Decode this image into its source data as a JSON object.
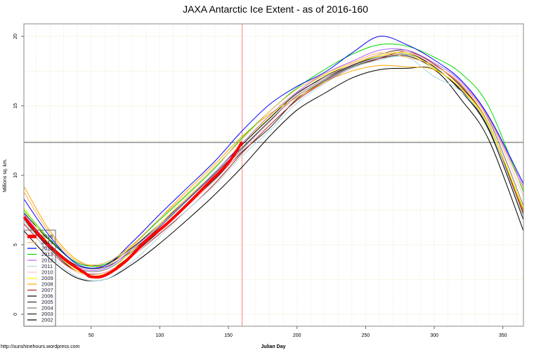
{
  "chart_data": {
    "type": "line",
    "title": "JAXA Antarctic Ice Extent - as of 2016-160",
    "xlabel": "Julian Day",
    "ylabel": "Millions sq. km.",
    "credit": "http://sunshinehours.wordpress.com",
    "xlim": [
      1,
      365
    ],
    "ylim": [
      -0.86,
      20.9
    ],
    "xticks": [
      50,
      100,
      150,
      200,
      250,
      300,
      350
    ],
    "yticks": [
      0,
      5,
      10,
      15,
      20
    ],
    "grid": true,
    "legend_position": "bottom-left",
    "reference_lines": {
      "vertical_day": 160,
      "horizontal_value": 12.37,
      "vertical_color": "#ff8080",
      "horizontal_color": "#555555"
    },
    "x": [
      1,
      20,
      40,
      60,
      80,
      100,
      120,
      140,
      160,
      180,
      200,
      220,
      240,
      260,
      280,
      300,
      320,
      340,
      365
    ],
    "series": [
      {
        "name": "2016",
        "color": "#ff0000",
        "x": [
          1,
          15,
          30,
          45,
          50,
          60,
          75,
          90,
          105,
          120,
          135,
          150,
          160
        ],
        "values": [
          7.0,
          5.4,
          4.0,
          3.0,
          2.7,
          2.8,
          3.8,
          5.3,
          6.5,
          7.9,
          9.4,
          10.9,
          12.4
        ]
      },
      {
        "name": "2015",
        "color": "#ffb25a",
        "values": [
          8.8,
          5.8,
          3.8,
          3.7,
          5.0,
          6.9,
          8.7,
          10.6,
          12.6,
          14.6,
          16.2,
          17.3,
          18.1,
          18.8,
          18.5,
          17.9,
          16.5,
          14.0,
          9.0
        ]
      },
      {
        "name": "2014",
        "color": "#0000ff",
        "values": [
          8.3,
          5.6,
          3.6,
          3.5,
          5.2,
          7.2,
          9.1,
          11.0,
          13.2,
          15.1,
          16.4,
          17.4,
          18.8,
          20.0,
          19.4,
          18.3,
          16.8,
          14.2,
          9.4
        ]
      },
      {
        "name": "2013",
        "color": "#00dd00",
        "values": [
          7.5,
          5.4,
          3.7,
          3.6,
          5.0,
          6.8,
          8.6,
          10.5,
          12.7,
          14.6,
          16.3,
          17.6,
          18.7,
          19.4,
          19.3,
          18.5,
          17.3,
          14.9,
          8.8
        ]
      },
      {
        "name": "2012",
        "color": "#b266ff",
        "values": [
          7.2,
          5.0,
          3.4,
          3.3,
          4.7,
          6.4,
          8.3,
          10.2,
          12.3,
          14.3,
          16.0,
          17.3,
          18.2,
          19.0,
          19.0,
          18.1,
          16.7,
          14.1,
          9.2
        ]
      },
      {
        "name": "2011",
        "color": "#add8e6",
        "values": [
          6.8,
          4.3,
          2.7,
          2.5,
          3.8,
          5.6,
          7.5,
          9.3,
          11.4,
          13.2,
          15.2,
          16.6,
          17.7,
          18.3,
          18.5,
          17.1,
          16.0,
          13.4,
          7.0
        ]
      },
      {
        "name": "2010",
        "color": "#ffc0cb",
        "values": [
          6.6,
          4.5,
          3.0,
          3.0,
          4.2,
          5.9,
          7.8,
          9.6,
          11.8,
          13.8,
          15.8,
          17.0,
          18.0,
          18.7,
          18.9,
          17.9,
          16.6,
          14.0,
          8.5
        ]
      },
      {
        "name": "2009",
        "color": "#ffff00",
        "values": [
          7.7,
          5.0,
          3.1,
          2.9,
          4.6,
          6.5,
          8.4,
          10.2,
          12.3,
          14.2,
          16.0,
          17.2,
          18.0,
          18.6,
          18.8,
          17.7,
          16.2,
          13.5,
          7.6
        ]
      },
      {
        "name": "2008",
        "color": "#ffa500",
        "values": [
          9.2,
          6.0,
          3.9,
          3.5,
          4.9,
          6.9,
          8.9,
          10.8,
          12.8,
          14.4,
          15.6,
          16.7,
          17.5,
          17.9,
          17.8,
          17.6,
          16.2,
          13.6,
          7.4
        ]
      },
      {
        "name": "2007",
        "color": "#b22222",
        "values": [
          6.5,
          4.5,
          3.1,
          3.0,
          4.2,
          5.8,
          7.5,
          9.4,
          11.6,
          13.6,
          15.4,
          16.7,
          17.7,
          18.4,
          18.9,
          18.0,
          16.3,
          13.6,
          7.2
        ]
      },
      {
        "name": "2006",
        "color": "#000000",
        "values": [
          7.3,
          5.3,
          3.7,
          3.6,
          4.8,
          6.5,
          8.3,
          10.2,
          12.2,
          14.1,
          15.9,
          17.0,
          17.9,
          18.6,
          18.8,
          17.8,
          16.0,
          13.2,
          6.8
        ]
      },
      {
        "name": "2005",
        "color": "#333333",
        "values": [
          7.0,
          5.0,
          3.5,
          3.4,
          4.6,
          6.3,
          8.2,
          10.1,
          12.0,
          13.9,
          15.8,
          17.1,
          18.0,
          18.7,
          19.0,
          18.0,
          16.4,
          13.6,
          7.5
        ]
      },
      {
        "name": "2004",
        "color": "#777777",
        "values": [
          6.9,
          4.9,
          3.3,
          3.2,
          4.5,
          6.1,
          8.0,
          9.9,
          11.9,
          13.9,
          15.7,
          16.9,
          17.9,
          18.5,
          18.7,
          17.9,
          16.5,
          13.9,
          7.8
        ]
      },
      {
        "name": "2003",
        "color": "#222222",
        "values": [
          6.8,
          4.7,
          3.1,
          3.0,
          4.3,
          6.0,
          7.9,
          9.7,
          11.7,
          13.4,
          15.5,
          16.8,
          17.8,
          18.4,
          18.6,
          17.7,
          16.1,
          13.3,
          7.3
        ]
      },
      {
        "name": "2002",
        "color": "#000000",
        "values": [
          6.0,
          4.0,
          2.6,
          2.5,
          3.6,
          5.1,
          6.8,
          8.6,
          10.6,
          12.8,
          14.7,
          15.9,
          17.0,
          17.6,
          17.7,
          17.6,
          15.4,
          12.5,
          6.0
        ]
      }
    ]
  }
}
